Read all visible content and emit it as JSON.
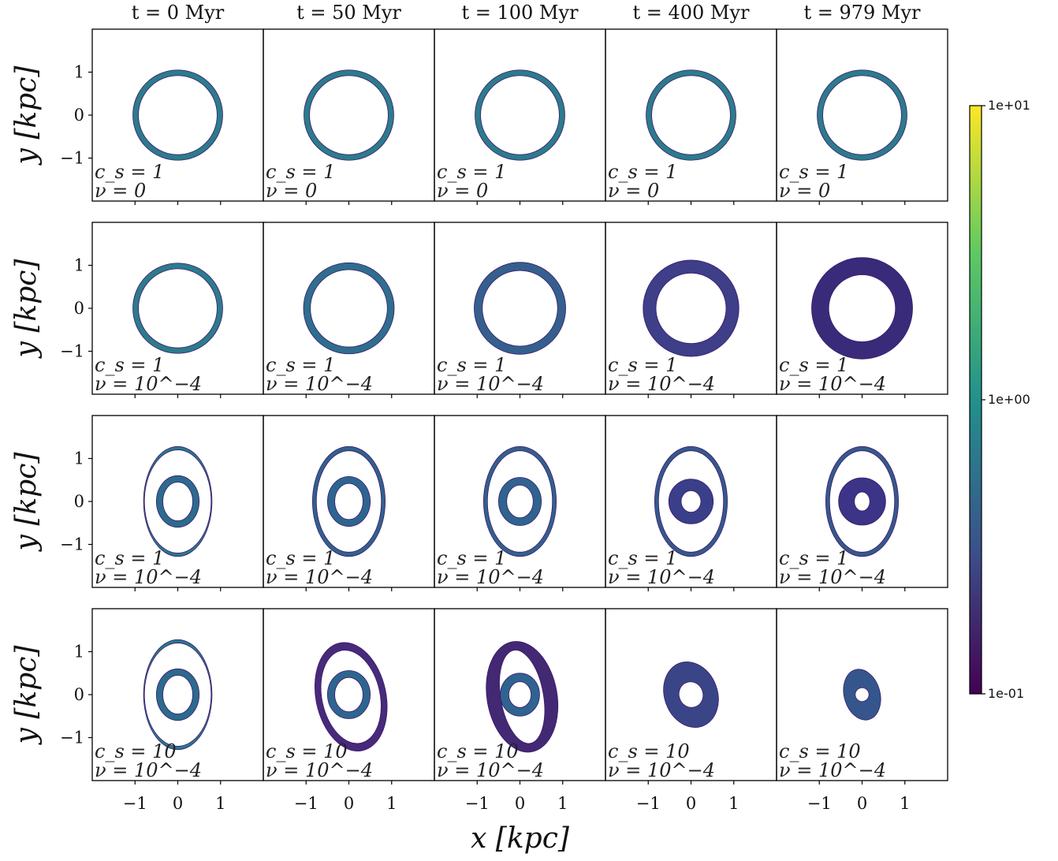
{
  "chart_data": {
    "type": "grid_of_density_maps",
    "column_titles": [
      "t = 0 Myr",
      "t = 50 Myr",
      "t = 100 Myr",
      "t = 400 Myr",
      "t = 979 Myr"
    ],
    "xlabel": "x [kpc]",
    "ylabel": "y [kpc]",
    "xlim": [
      -2,
      2
    ],
    "ylim": [
      -2,
      2
    ],
    "xticks": [
      -1,
      0,
      1
    ],
    "yticks": [
      -1,
      0,
      1
    ],
    "x_tick_labels": [
      "−1",
      "0",
      "1"
    ],
    "y_tick_labels": [
      "−1",
      "0",
      "1"
    ],
    "colorbar": {
      "scale": "log",
      "range": [
        0.1,
        10
      ],
      "ticks": [
        "1e+01",
        "1e+00",
        "1e-01"
      ],
      "colormap": [
        "#440154",
        "#3b528b",
        "#21918c",
        "#5ec962",
        "#fde725"
      ]
    },
    "rows": [
      {
        "label_cs": "c_s = 1",
        "label_nu": "ν = 0",
        "panels": [
          {
            "rings": [
              {
                "cx": 0,
                "cy": 0,
                "rx_out": 1.05,
                "ry_out": 1.05,
                "rx_in": 0.92,
                "ry_in": 0.92,
                "color": "#2c7b8c"
              }
            ]
          },
          {
            "rings": [
              {
                "cx": 0,
                "cy": 0,
                "rx_out": 1.05,
                "ry_out": 1.05,
                "rx_in": 0.92,
                "ry_in": 0.92,
                "color": "#2c7b8c"
              }
            ]
          },
          {
            "rings": [
              {
                "cx": 0,
                "cy": 0,
                "rx_out": 1.05,
                "ry_out": 1.05,
                "rx_in": 0.92,
                "ry_in": 0.92,
                "color": "#2c7b8c"
              }
            ]
          },
          {
            "rings": [
              {
                "cx": 0,
                "cy": 0,
                "rx_out": 1.05,
                "ry_out": 1.05,
                "rx_in": 0.92,
                "ry_in": 0.92,
                "color": "#2c7b8c"
              }
            ]
          },
          {
            "rings": [
              {
                "cx": 0,
                "cy": 0,
                "rx_out": 1.05,
                "ry_out": 1.05,
                "rx_in": 0.92,
                "ry_in": 0.92,
                "color": "#2c7b8c"
              }
            ]
          }
        ]
      },
      {
        "label_cs": "c_s = 1",
        "label_nu": "ν = 10^−4",
        "panels": [
          {
            "rings": [
              {
                "cx": 0,
                "cy": 0,
                "rx_out": 1.05,
                "ry_out": 1.05,
                "rx_in": 0.92,
                "ry_in": 0.92,
                "color": "#2c7b8c"
              }
            ]
          },
          {
            "rings": [
              {
                "cx": 0,
                "cy": 0,
                "rx_out": 1.06,
                "ry_out": 1.06,
                "rx_in": 0.9,
                "ry_in": 0.9,
                "color": "#2f6e8e"
              }
            ]
          },
          {
            "rings": [
              {
                "cx": 0,
                "cy": 0,
                "rx_out": 1.07,
                "ry_out": 1.07,
                "rx_in": 0.88,
                "ry_in": 0.88,
                "color": "#355f8d"
              }
            ]
          },
          {
            "rings": [
              {
                "cx": 0,
                "cy": 0,
                "rx_out": 1.12,
                "ry_out": 1.12,
                "rx_in": 0.82,
                "ry_in": 0.82,
                "color": "#3e3e89"
              }
            ]
          },
          {
            "rings": [
              {
                "cx": 0,
                "cy": 0,
                "rx_out": 1.18,
                "ry_out": 1.18,
                "rx_in": 0.78,
                "ry_in": 0.78,
                "color": "#3a2a7a"
              }
            ]
          }
        ]
      },
      {
        "label_cs": "c_s = 1",
        "label_nu": "ν = 10^−4",
        "panels": [
          {
            "rings": [
              {
                "cx": 0,
                "cy": 0,
                "rx_out": 0.8,
                "ry_out": 1.28,
                "rx_in": 0.78,
                "ry_in": 1.2,
                "color": "#2a788e"
              },
              {
                "cx": 0,
                "cy": 0,
                "rx_out": 0.5,
                "ry_out": 0.6,
                "rx_in": 0.35,
                "ry_in": 0.45,
                "color": "#2c6a8e"
              }
            ]
          },
          {
            "rings": [
              {
                "cx": 0,
                "cy": 0,
                "rx_out": 0.85,
                "ry_out": 1.28,
                "rx_in": 0.76,
                "ry_in": 1.18,
                "color": "#31618d"
              },
              {
                "cx": 0,
                "cy": 0,
                "rx_out": 0.5,
                "ry_out": 0.58,
                "rx_in": 0.33,
                "ry_in": 0.42,
                "color": "#2e6590"
              }
            ]
          },
          {
            "rings": [
              {
                "cx": 0,
                "cy": 0,
                "rx_out": 0.85,
                "ry_out": 1.28,
                "rx_in": 0.76,
                "ry_in": 1.18,
                "color": "#33608d"
              },
              {
                "cx": 0,
                "cy": 0,
                "rx_out": 0.5,
                "ry_out": 0.56,
                "rx_in": 0.31,
                "ry_in": 0.38,
                "color": "#2f6390"
              }
            ]
          },
          {
            "rings": [
              {
                "cx": 0,
                "cy": 0,
                "rx_out": 0.85,
                "ry_out": 1.28,
                "rx_in": 0.76,
                "ry_in": 1.18,
                "color": "#35598c"
              },
              {
                "cx": 0,
                "cy": 0,
                "rx_out": 0.52,
                "ry_out": 0.52,
                "rx_in": 0.23,
                "ry_in": 0.25,
                "color": "#3a3f89"
              }
            ]
          },
          {
            "rings": [
              {
                "cx": 0,
                "cy": 0,
                "rx_out": 0.85,
                "ry_out": 1.28,
                "rx_in": 0.76,
                "ry_in": 1.18,
                "color": "#35598c"
              },
              {
                "cx": 0,
                "cy": 0,
                "rx_out": 0.55,
                "ry_out": 0.55,
                "rx_in": 0.18,
                "ry_in": 0.22,
                "color": "#3b3487"
              }
            ]
          }
        ]
      },
      {
        "label_cs": "c_s = 10",
        "label_nu": "ν = 10^−4",
        "panels": [
          {
            "rings": [
              {
                "cx": 0,
                "cy": 0,
                "rx_out": 0.8,
                "ry_out": 1.28,
                "rx_in": 0.78,
                "ry_in": 1.2,
                "color": "#2a788e"
              },
              {
                "cx": 0,
                "cy": 0,
                "rx_out": 0.5,
                "ry_out": 0.6,
                "rx_in": 0.35,
                "ry_in": 0.45,
                "color": "#2c6a8e"
              }
            ]
          },
          {
            "rings": [
              {
                "cx": 0.05,
                "cy": -0.05,
                "rx_out": 0.82,
                "ry_out": 1.28,
                "rx_in": 0.68,
                "ry_in": 1.1,
                "color": "#472a7a",
                "rot": -12
              },
              {
                "cx": 0,
                "cy": 0,
                "rx_out": 0.5,
                "ry_out": 0.56,
                "rx_in": 0.33,
                "ry_in": 0.4,
                "color": "#2e6590"
              }
            ]
          },
          {
            "rings": [
              {
                "cx": 0.05,
                "cy": -0.05,
                "rx_out": 0.82,
                "ry_out": 1.3,
                "rx_in": 0.5,
                "ry_in": 1.1,
                "color": "#432874",
                "rot": -10
              },
              {
                "cx": 0,
                "cy": 0,
                "rx_out": 0.46,
                "ry_out": 0.5,
                "rx_in": 0.26,
                "ry_in": 0.3,
                "color": "#2f6390"
              }
            ]
          },
          {
            "rings": [
              {
                "cx": 0,
                "cy": 0,
                "rx_out": 0.62,
                "ry_out": 0.78,
                "rx_in": 0.28,
                "ry_in": 0.3,
                "color": "#3a4587",
                "rot": -20
              }
            ]
          },
          {
            "rings": [
              {
                "cx": 0,
                "cy": 0,
                "rx_out": 0.42,
                "ry_out": 0.6,
                "rx_in": 0.16,
                "ry_in": 0.16,
                "color": "#35568c",
                "rot": -15
              }
            ]
          }
        ]
      }
    ]
  }
}
